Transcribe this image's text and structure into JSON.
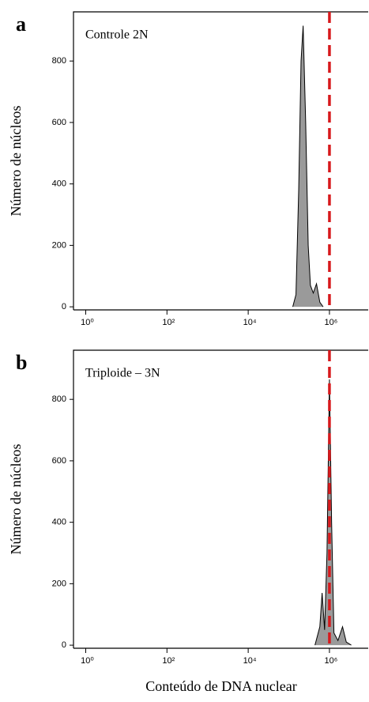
{
  "chart_data": [
    {
      "type": "area",
      "panel": "a",
      "annotation": "Controle 2N",
      "ylabel": "Número de núcleos",
      "x": [
        125000,
        150000,
        175000,
        200000,
        225000,
        260000,
        300000,
        340000,
        400000,
        480000,
        580000,
        700000
      ],
      "values": [
        0,
        40,
        380,
        800,
        915,
        600,
        200,
        70,
        45,
        75,
        15,
        0
      ],
      "color": "#9a9a9a",
      "xscale": "log",
      "xlim": [
        0.5,
        9000000
      ],
      "ylim": [
        -10,
        960
      ],
      "xticks": [
        {
          "value": 1,
          "label": "10⁰"
        },
        {
          "value": 100,
          "label": "10²"
        },
        {
          "value": 10000,
          "label": "10⁴"
        },
        {
          "value": 1000000,
          "label": "10⁶"
        }
      ],
      "yticks": [
        0,
        200,
        400,
        600,
        800
      ],
      "reference_line_x": 1000000,
      "reference_line_color": "#d7191c"
    },
    {
      "type": "area",
      "panel": "b",
      "annotation": "Triploide – 3N",
      "ylabel": "Número de núcleos",
      "xlabel": "Conteúdo de DNA nuclear",
      "x": [
        440000,
        580000,
        660000,
        760000,
        870000,
        1000000,
        1130000,
        1290000,
        1620000,
        2100000,
        2600000,
        3450000
      ],
      "values": [
        0,
        60,
        170,
        50,
        300,
        865,
        400,
        40,
        15,
        60,
        10,
        0
      ],
      "color": "#9a9a9a",
      "xscale": "log",
      "xlim": [
        0.5,
        9000000
      ],
      "ylim": [
        -10,
        960
      ],
      "xticks": [
        {
          "value": 1,
          "label": "10⁰"
        },
        {
          "value": 100,
          "label": "10²"
        },
        {
          "value": 10000,
          "label": "10⁴"
        },
        {
          "value": 1000000,
          "label": "10⁶"
        }
      ],
      "yticks": [
        0,
        200,
        400,
        600,
        800
      ],
      "reference_line_x": 1000000,
      "reference_line_color": "#d7191c"
    }
  ]
}
